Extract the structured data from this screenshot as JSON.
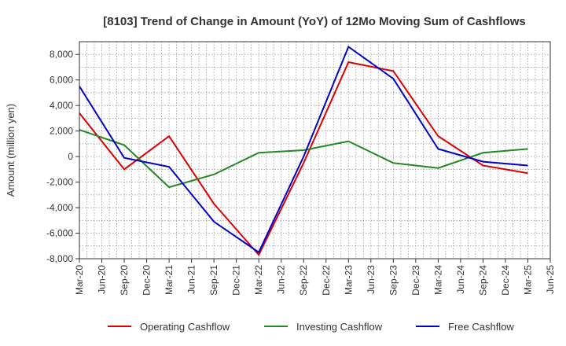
{
  "chart_data": {
    "type": "line",
    "title": "[8103]  Trend of Change in Amount (YoY) of 12Mo Moving Sum of Cashflows",
    "xlabel": "",
    "ylabel": "Amount (million yen)",
    "ylim": [
      -8000,
      9000
    ],
    "yticks": [
      -8000,
      -6000,
      -4000,
      -2000,
      0,
      2000,
      4000,
      6000,
      8000
    ],
    "ytick_labels": [
      "-8,000",
      "-6,000",
      "-4,000",
      "-2,000",
      "0",
      "2,000",
      "4,000",
      "6,000",
      "8,000"
    ],
    "x_tick_labels": [
      "Mar-20",
      "Jun-20",
      "Sep-20",
      "Dec-20",
      "Mar-21",
      "Jun-21",
      "Sep-21",
      "Dec-21",
      "Mar-22",
      "Jun-22",
      "Sep-22",
      "Dec-22",
      "Mar-23",
      "Jun-23",
      "Sep-23",
      "Dec-23",
      "Mar-24",
      "Jun-24",
      "Sep-24",
      "Dec-24",
      "Mar-25",
      "Jun-25"
    ],
    "grid": true,
    "legend_position": "bottom",
    "series": [
      {
        "name": "Operating Cashflow",
        "color": "#dd0000",
        "points": [
          [
            0,
            3400
          ],
          [
            2,
            -1000
          ],
          [
            4,
            1600
          ],
          [
            6,
            -3700
          ],
          [
            8,
            -7700
          ],
          [
            10,
            -500
          ],
          [
            12,
            7400
          ],
          [
            14,
            6700
          ],
          [
            16,
            1600
          ],
          [
            18,
            -700
          ],
          [
            20,
            -1300
          ]
        ]
      },
      {
        "name": "Investing Cashflow",
        "color": "#228822",
        "points": [
          [
            0,
            2100
          ],
          [
            2,
            900
          ],
          [
            4,
            -2400
          ],
          [
            6,
            -1400
          ],
          [
            8,
            300
          ],
          [
            10,
            500
          ],
          [
            12,
            1200
          ],
          [
            14,
            -500
          ],
          [
            16,
            -900
          ],
          [
            18,
            300
          ],
          [
            20,
            600
          ]
        ]
      },
      {
        "name": "Free Cashflow",
        "color": "#0000cc",
        "points": [
          [
            0,
            5500
          ],
          [
            2,
            -100
          ],
          [
            4,
            -800
          ],
          [
            6,
            -5100
          ],
          [
            8,
            -7500
          ],
          [
            10,
            0
          ],
          [
            12,
            8600
          ],
          [
            14,
            6100
          ],
          [
            16,
            600
          ],
          [
            18,
            -400
          ],
          [
            20,
            -700
          ]
        ]
      }
    ]
  }
}
